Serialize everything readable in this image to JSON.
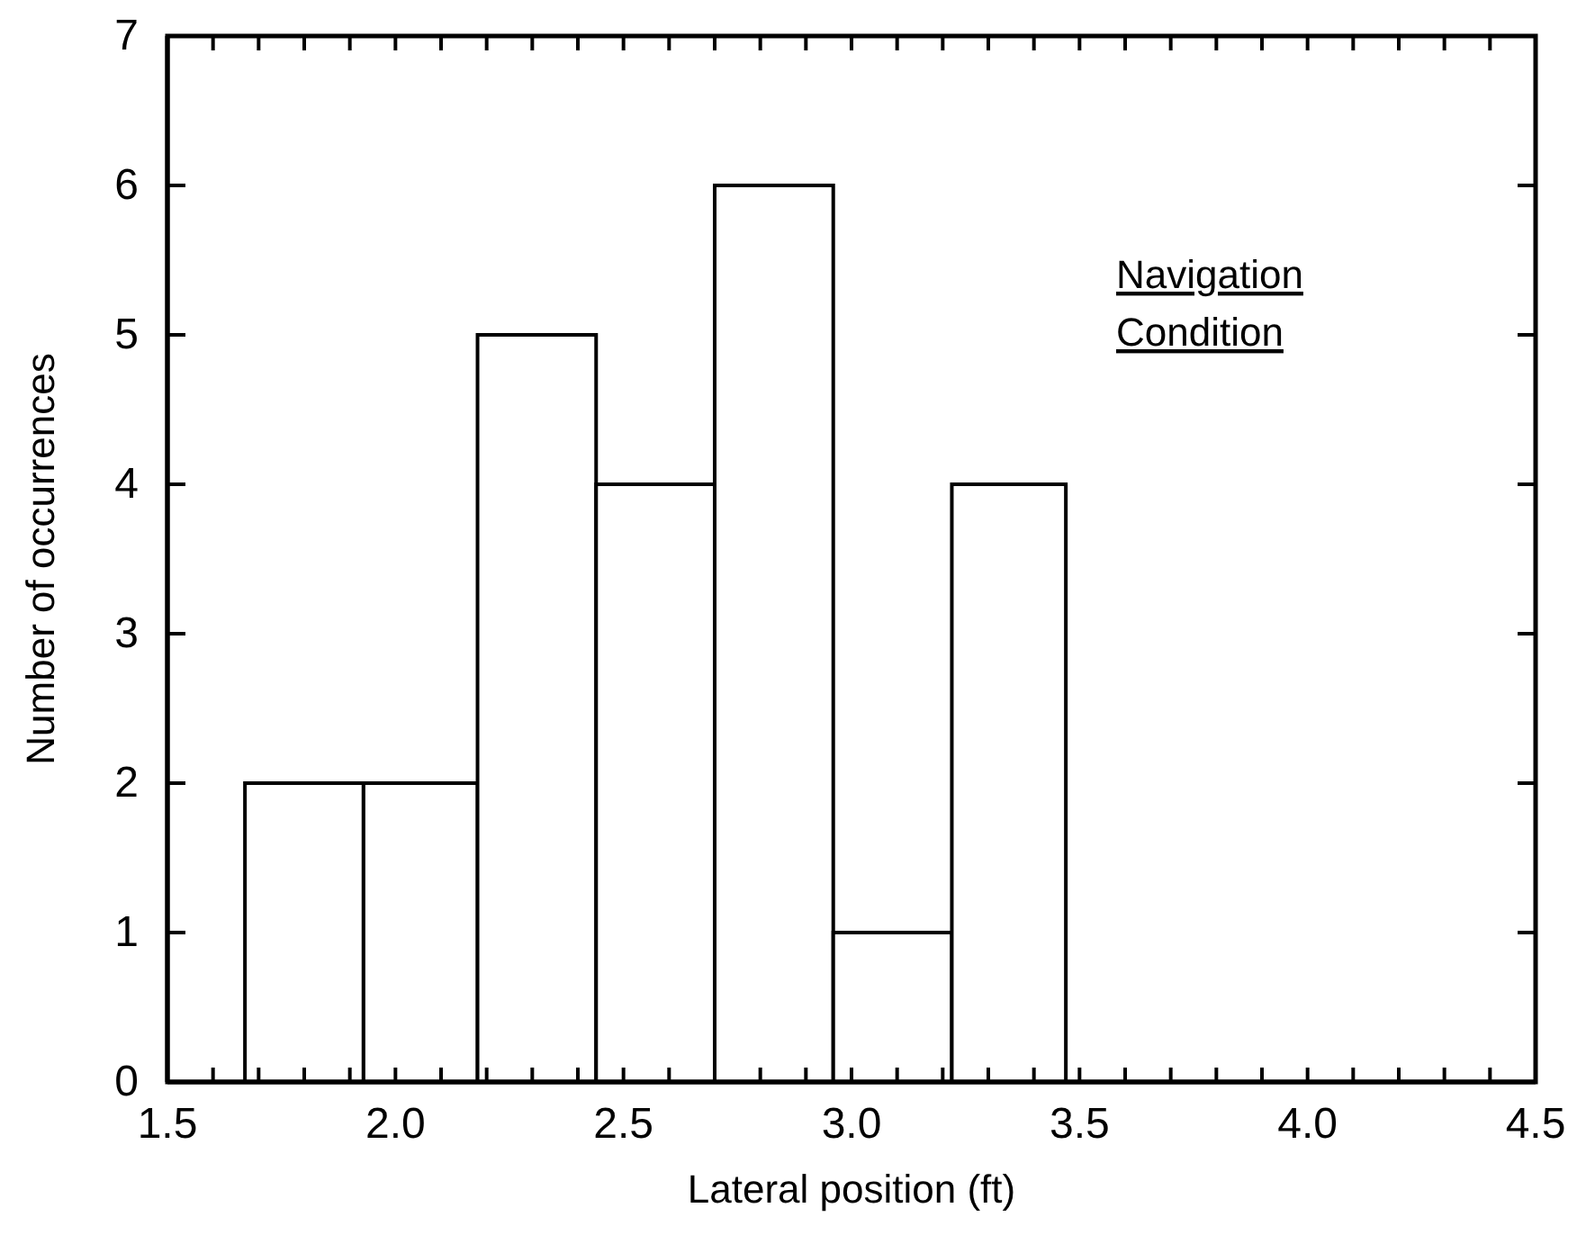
{
  "chart_data": {
    "type": "histogram",
    "xlabel": "Lateral position (ft)",
    "ylabel": "Number of occurrences",
    "bins": [
      1.67,
      1.93,
      2.18,
      2.44,
      2.7,
      2.96,
      3.22,
      3.47
    ],
    "values": [
      2,
      2,
      5,
      4,
      6,
      1,
      4
    ],
    "color": "#ffffff",
    "annotations": [
      "Navigation",
      "Condition"
    ],
    "xlim": [
      1.5,
      4.5
    ],
    "xticks": [
      {
        "value": 1.5,
        "label": "1.5"
      },
      {
        "value": 1.6,
        "label": null
      },
      {
        "value": 1.7,
        "label": null
      },
      {
        "value": 1.8,
        "label": null
      },
      {
        "value": 1.9,
        "label": null
      },
      {
        "value": 2,
        "label": "2.0"
      },
      {
        "value": 2.1,
        "label": null
      },
      {
        "value": 2.2,
        "label": null
      },
      {
        "value": 2.3,
        "label": null
      },
      {
        "value": 2.4,
        "label": null
      },
      {
        "value": 2.5,
        "label": "2.5"
      },
      {
        "value": 2.6,
        "label": null
      },
      {
        "value": 2.7,
        "label": null
      },
      {
        "value": 2.8,
        "label": null
      },
      {
        "value": 2.9,
        "label": null
      },
      {
        "value": 3,
        "label": "3.0"
      },
      {
        "value": 3.1,
        "label": null
      },
      {
        "value": 3.2,
        "label": null
      },
      {
        "value": 3.3,
        "label": null
      },
      {
        "value": 3.4,
        "label": null
      },
      {
        "value": 3.5,
        "label": "3.5"
      },
      {
        "value": 3.6,
        "label": null
      },
      {
        "value": 3.7,
        "label": null
      },
      {
        "value": 3.8,
        "label": null
      },
      {
        "value": 3.9,
        "label": null
      },
      {
        "value": 4,
        "label": "4.0"
      },
      {
        "value": 4.1,
        "label": null
      },
      {
        "value": 4.2,
        "label": null
      },
      {
        "value": 4.3,
        "label": null
      },
      {
        "value": 4.4,
        "label": null
      },
      {
        "value": 4.5,
        "label": "4.5"
      }
    ],
    "ylim": [
      0,
      7
    ],
    "yticks": [
      0,
      1,
      2,
      3,
      4,
      5,
      6,
      7
    ]
  }
}
